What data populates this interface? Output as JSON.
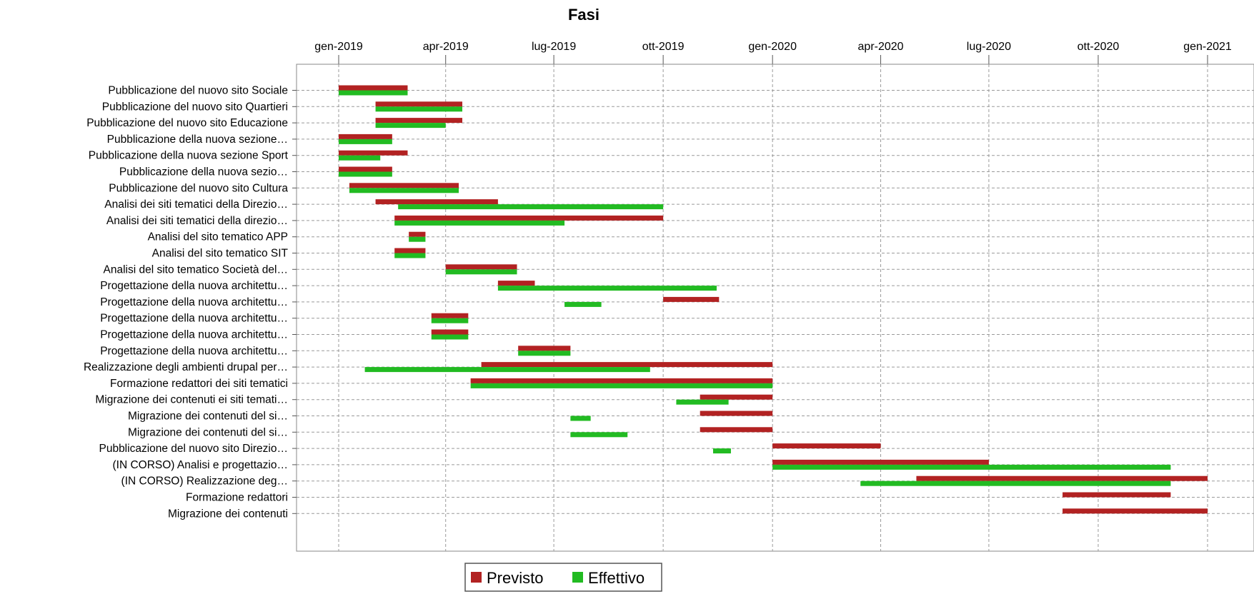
{
  "chart_data": {
    "type": "gantt",
    "title": "Fasi",
    "x_axis": {
      "type": "date",
      "range": [
        "2019-01-01",
        "2021-01-01"
      ],
      "ticks": [
        {
          "date": "2019-01-01",
          "label": "gen-2019"
        },
        {
          "date": "2019-04-01",
          "label": "apr-2019"
        },
        {
          "date": "2019-07-01",
          "label": "lug-2019"
        },
        {
          "date": "2019-10-01",
          "label": "ott-2019"
        },
        {
          "date": "2020-01-01",
          "label": "gen-2020"
        },
        {
          "date": "2020-04-01",
          "label": "apr-2020"
        },
        {
          "date": "2020-07-01",
          "label": "lug-2020"
        },
        {
          "date": "2020-10-01",
          "label": "ott-2020"
        },
        {
          "date": "2021-01-01",
          "label": "gen-2021"
        }
      ],
      "position": "top",
      "grid": true
    },
    "legend": {
      "placement": "bottom",
      "items": [
        {
          "label": "Previsto",
          "color": "#b22222"
        },
        {
          "label": "Effettivo",
          "color": "#22bb22"
        }
      ]
    },
    "tasks": [
      {
        "label": "Pubblicazione del nuovo sito Sociale",
        "previsto": [
          "2019-01-01",
          "2019-02-28"
        ],
        "effettivo": [
          "2019-01-01",
          "2019-02-28"
        ]
      },
      {
        "label": "Pubblicazione del nuovo sito Quartieri",
        "previsto": [
          "2019-02-01",
          "2019-04-15"
        ],
        "effettivo": [
          "2019-02-01",
          "2019-04-15"
        ]
      },
      {
        "label": "Pubblicazione del nuovo sito Educazione",
        "previsto": [
          "2019-02-01",
          "2019-04-15"
        ],
        "effettivo": [
          "2019-02-01",
          "2019-04-01"
        ]
      },
      {
        "label": "Pubblicazione della nuova sezione…",
        "previsto": [
          "2019-01-01",
          "2019-02-15"
        ],
        "effettivo": [
          "2019-01-01",
          "2019-02-15"
        ]
      },
      {
        "label": "Pubblicazione della nuova sezione Sport",
        "previsto": [
          "2019-01-01",
          "2019-02-28"
        ],
        "effettivo": [
          "2019-01-01",
          "2019-02-05"
        ]
      },
      {
        "label": "Pubblicazione della nuova sezio…",
        "previsto": [
          "2019-01-01",
          "2019-02-15"
        ],
        "effettivo": [
          "2019-01-01",
          "2019-02-15"
        ]
      },
      {
        "label": "Pubblicazione del nuovo sito Cultura",
        "previsto": [
          "2019-01-10",
          "2019-04-12"
        ],
        "effettivo": [
          "2019-01-10",
          "2019-04-12"
        ]
      },
      {
        "label": "Analisi dei siti tematici della Direzio…",
        "previsto": [
          "2019-02-01",
          "2019-05-15"
        ],
        "effettivo": [
          "2019-02-20",
          "2019-10-01"
        ]
      },
      {
        "label": "Analisi dei siti tematici della direzio…",
        "previsto": [
          "2019-02-17",
          "2019-10-01"
        ],
        "effettivo": [
          "2019-02-17",
          "2019-07-10"
        ]
      },
      {
        "label": "Analisi del sito tematico APP",
        "previsto": [
          "2019-03-01",
          "2019-03-15"
        ],
        "effettivo": [
          "2019-03-01",
          "2019-03-15"
        ]
      },
      {
        "label": "Analisi del sito tematico SIT",
        "previsto": [
          "2019-02-17",
          "2019-03-15"
        ],
        "effettivo": [
          "2019-02-17",
          "2019-03-15"
        ]
      },
      {
        "label": "Analisi del sito tematico Società del…",
        "previsto": [
          "2019-04-01",
          "2019-05-31"
        ],
        "effettivo": [
          "2019-04-01",
          "2019-05-31"
        ]
      },
      {
        "label": "Progettazione della nuova architettu…",
        "previsto": [
          "2019-05-15",
          "2019-06-15"
        ],
        "effettivo": [
          "2019-05-15",
          "2019-11-15"
        ]
      },
      {
        "label": "Progettazione della nuova architettu…",
        "previsto": [
          "2019-10-01",
          "2019-11-17"
        ],
        "effettivo": [
          "2019-07-10",
          "2019-08-10"
        ]
      },
      {
        "label": "Progettazione della nuova architettu…",
        "previsto": [
          "2019-03-20",
          "2019-04-20"
        ],
        "effettivo": [
          "2019-03-20",
          "2019-04-20"
        ]
      },
      {
        "label": "Progettazione della nuova architettu…",
        "previsto": [
          "2019-03-20",
          "2019-04-20"
        ],
        "effettivo": [
          "2019-03-20",
          "2019-04-20"
        ]
      },
      {
        "label": "Progettazione della nuova architettu…",
        "previsto": [
          "2019-06-01",
          "2019-07-15"
        ],
        "effettivo": [
          "2019-06-01",
          "2019-07-15"
        ]
      },
      {
        "label": "Realizzazione degli ambienti drupal per…",
        "previsto": [
          "2019-05-01",
          "2020-01-01"
        ],
        "effettivo": [
          "2019-01-23",
          "2019-09-20"
        ]
      },
      {
        "label": "Formazione redattori dei siti tematici",
        "previsto": [
          "2019-04-22",
          "2020-01-01"
        ],
        "effettivo": [
          "2019-04-22",
          "2020-01-01"
        ]
      },
      {
        "label": "Migrazione dei contenuti ei siti temati…",
        "previsto": [
          "2019-11-01",
          "2020-01-01"
        ],
        "effettivo": [
          "2019-10-12",
          "2019-11-25"
        ]
      },
      {
        "label": "Migrazione dei contenuti del si…",
        "previsto": [
          "2019-11-01",
          "2020-01-01"
        ],
        "effettivo": [
          "2019-07-15",
          "2019-08-01"
        ]
      },
      {
        "label": "Migrazione dei contenuti del si…",
        "previsto": [
          "2019-11-01",
          "2020-01-01"
        ],
        "effettivo": [
          "2019-07-15",
          "2019-09-01"
        ]
      },
      {
        "label": "Pubblicazione del nuovo sito Direzio…",
        "previsto": [
          "2020-01-01",
          "2020-04-01"
        ],
        "effettivo": [
          "2019-11-12",
          "2019-11-27"
        ]
      },
      {
        "label": "(IN CORSO) Analisi e progettazio…",
        "previsto": [
          "2020-01-01",
          "2020-07-01"
        ],
        "effettivo": [
          "2020-01-01",
          "2020-12-01"
        ]
      },
      {
        "label": "(IN CORSO) Realizzazione deg…",
        "previsto": [
          "2020-05-01",
          "2021-01-01"
        ],
        "effettivo": [
          "2020-03-15",
          "2020-12-01"
        ]
      },
      {
        "label": "Formazione redattori",
        "previsto": [
          "2020-09-01",
          "2020-12-01"
        ],
        "effettivo": null
      },
      {
        "label": "Migrazione dei contenuti",
        "previsto": [
          "2020-09-01",
          "2021-01-01"
        ],
        "effettivo": null
      }
    ]
  }
}
